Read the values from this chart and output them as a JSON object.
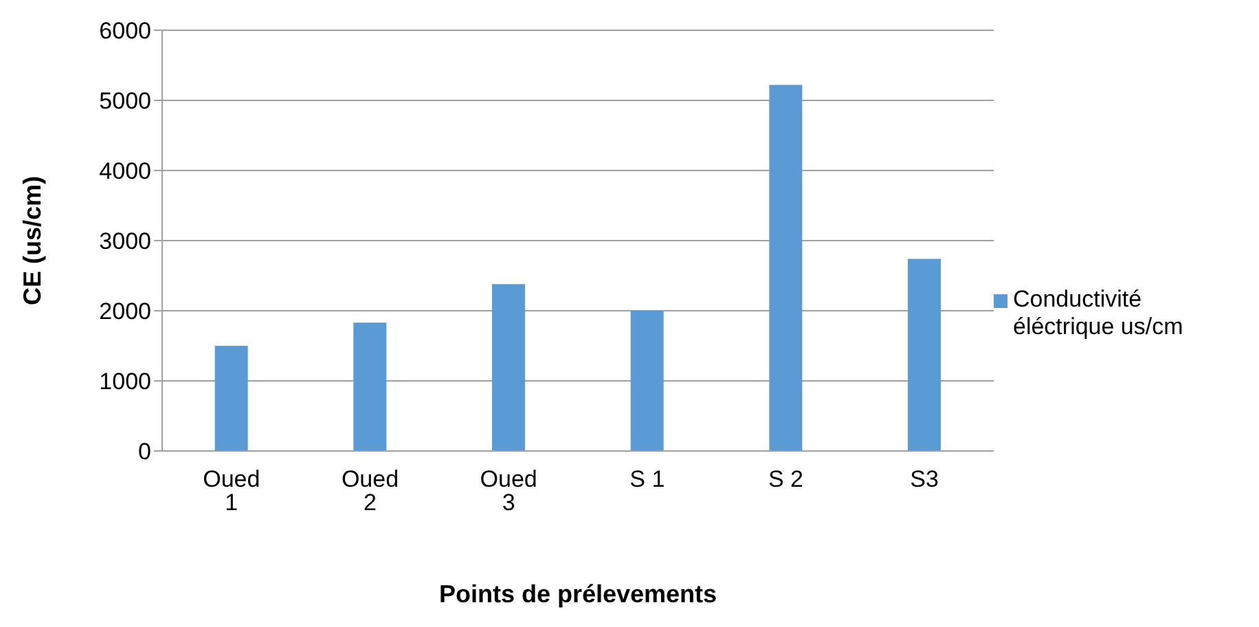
{
  "chart_data": {
    "type": "bar",
    "xlabel": "Points de prélevements",
    "ylabel": "CE (us/cm)",
    "categories": [
      "Oued 1",
      "Oued 2",
      "Oued 3",
      "S 1",
      "S 2",
      "S3"
    ],
    "series": [
      {
        "name": "Conductivité éléctrique us/cm",
        "color": "#5b9bd5",
        "values": [
          1500,
          1830,
          2380,
          2000,
          5220,
          2740
        ]
      }
    ],
    "ylim": [
      0,
      6000
    ],
    "yticks": [
      0,
      1000,
      2000,
      3000,
      4000,
      5000,
      6000
    ],
    "grid": "y",
    "legend": "right"
  }
}
